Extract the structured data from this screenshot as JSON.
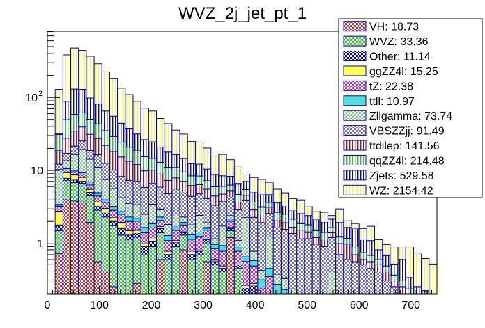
{
  "chart_data": {
    "type": "bar",
    "subtype": "stacked-histogram",
    "title": "WVZ_2j_jet_pt_1",
    "xlabel": "",
    "ylabel": "",
    "xlim": [
      0,
      750
    ],
    "ylim": [
      0.2,
      810
    ],
    "yscale": "log",
    "bin_width": 15,
    "x_ticks": [
      0,
      100,
      200,
      300,
      400,
      500,
      600,
      700
    ],
    "x_tick_labels": [
      "0",
      "100",
      "200",
      "300",
      "400",
      "500",
      "600",
      "700"
    ],
    "y_tick_labels": [
      {
        "value": 1,
        "label": "1"
      },
      {
        "value": 10,
        "label": "10"
      },
      {
        "value": 100,
        "label": "10",
        "exponent": "2"
      }
    ],
    "grid": false,
    "legend_position": "top-right",
    "series": [
      {
        "name": "VH",
        "legend": "VH: 18.73",
        "color": "#cc3333",
        "fill": "checker",
        "values": [
          0,
          0.72,
          4.0,
          3.8,
          3.7,
          1.9,
          0.55,
          0.4,
          0.25,
          0,
          0,
          0.28,
          0,
          0,
          0.6,
          0,
          0,
          0.8,
          0,
          0,
          0.55,
          0,
          0,
          1.2,
          0,
          0,
          0,
          0,
          0,
          0,
          0,
          0,
          0,
          0,
          0,
          0,
          0,
          0,
          0,
          0,
          0,
          0,
          0,
          0,
          0,
          0,
          0,
          0,
          0,
          0
        ]
      },
      {
        "name": "WVZ",
        "legend": "WVZ: 33.36",
        "color": "#33cc33",
        "fill": "checker",
        "values": [
          0,
          0.78,
          3.2,
          3.0,
          2.8,
          2.6,
          2.3,
          1.9,
          1.5,
          1.3,
          1.1,
          0.9,
          0.7,
          0.9,
          0.8,
          0.6,
          0.9,
          0.5,
          0.6,
          0.7,
          0.45,
          0.5,
          0.4,
          0.3,
          0.45,
          0.2,
          0.2,
          0,
          0.15,
          0,
          0,
          0,
          0,
          0,
          0,
          0,
          0,
          0,
          0,
          0,
          0,
          0,
          0,
          0,
          0,
          0,
          0,
          0,
          0,
          0
        ]
      },
      {
        "name": "Other",
        "legend": "Other: 11.14",
        "color": "#0000cc",
        "fill": "checker",
        "values": [
          0,
          0.25,
          0.6,
          0.55,
          0.5,
          0.4,
          0.35,
          0.3,
          0.25,
          0.3,
          0.2,
          0.18,
          0.2,
          0.15,
          0.2,
          0.1,
          0.12,
          0.1,
          0.1,
          0.08,
          0.12,
          0.05,
          0.05,
          0.1,
          0.05,
          0.04,
          0.06,
          0.04,
          0.05,
          0.04,
          0.05,
          0.03,
          0.03,
          0.03,
          0,
          0,
          0,
          0,
          0,
          0,
          0,
          0,
          0,
          0,
          0,
          0,
          0,
          0,
          0,
          0
        ]
      },
      {
        "name": "ggZZ4l",
        "legend": "ggZZ4l: 15.25",
        "color": "#ffff55",
        "fill": "solid",
        "values": [
          0,
          0.95,
          1.5,
          1.3,
          1.0,
          0.6,
          0.5,
          0.35,
          0.25,
          0.3,
          0.2,
          0.15,
          0.1,
          0.12,
          0.1,
          0.08,
          0.06,
          0.05,
          0.06,
          0.04,
          0.05,
          0.04,
          0.03,
          0.02,
          0.03,
          0.02,
          0.02,
          0,
          0,
          0,
          0,
          0,
          0,
          0,
          0,
          0,
          0,
          0,
          0,
          0,
          0,
          0,
          0,
          0,
          0,
          0,
          0,
          0,
          0,
          0
        ]
      },
      {
        "name": "tZ",
        "legend": "tZ: 22.38",
        "color": "#cc33cc",
        "fill": "checker",
        "values": [
          0,
          0.45,
          0.8,
          0.9,
          0.85,
          0.8,
          0.75,
          0.7,
          0.6,
          0.55,
          0.5,
          0.45,
          0.4,
          0.5,
          0.35,
          0.3,
          0.4,
          0.3,
          0.35,
          0.4,
          0.3,
          0.25,
          0.3,
          0.35,
          0.25,
          0.3,
          0.2,
          0.2,
          0.15,
          0.15,
          0.1,
          0.1,
          0.08,
          0.08,
          0,
          0,
          0,
          0,
          0,
          0,
          0,
          0,
          0,
          0,
          0,
          0,
          0,
          0,
          0,
          0
        ]
      },
      {
        "name": "ttll",
        "legend": "ttll: 10.97",
        "color": "#55dddd",
        "fill": "solid",
        "values": [
          0,
          0.2,
          0.5,
          0.45,
          0.45,
          0.4,
          0.4,
          0.35,
          0.3,
          0.3,
          0.3,
          0.25,
          0.25,
          0.2,
          0.25,
          0.2,
          0.2,
          0.15,
          0.2,
          0.15,
          0.15,
          0.12,
          0.15,
          0.12,
          0.1,
          0.1,
          0.1,
          0.08,
          0.1,
          0.08,
          0.08,
          0.06,
          0.06,
          0.05,
          0,
          0,
          0,
          0,
          0,
          0,
          0,
          0,
          0,
          0,
          0,
          0,
          0,
          0,
          0,
          0
        ]
      },
      {
        "name": "Zllgamma",
        "legend": "Zllgamma: 73.74",
        "color": "#88cc88",
        "fill": "checker",
        "values": [
          0,
          6.9,
          3.0,
          6.5,
          10.0,
          7.5,
          6.0,
          3.5,
          2.5,
          1.5,
          1.2,
          1.2,
          0.8,
          1.5,
          0.6,
          0.5,
          0.9,
          0.4,
          0.5,
          1.0,
          0.3,
          0.2,
          0.8,
          0.3,
          0.2,
          1.6,
          0.2,
          0.1,
          0.8,
          0.1,
          0.1,
          0.05,
          0,
          0,
          0,
          0,
          0.4,
          0,
          0,
          0,
          0,
          0,
          0,
          0,
          0,
          0,
          0,
          0,
          0,
          0
        ]
      },
      {
        "name": "VBSZZjj",
        "legend": "VBSZZjj: 91.49",
        "color": "#7777bb",
        "fill": "checker",
        "values": [
          0,
          1.9,
          3.5,
          5.0,
          6.0,
          4.5,
          5.5,
          5.0,
          4.5,
          4.0,
          3.8,
          3.6,
          3.4,
          3.2,
          3.0,
          3.0,
          2.8,
          2.7,
          2.6,
          2.4,
          2.2,
          2.1,
          2.0,
          1.9,
          1.8,
          1.6,
          1.5,
          1.5,
          1.3,
          1.3,
          1.2,
          1.1,
          1.0,
          1.0,
          0.95,
          0.9,
          0.8,
          0.7,
          0.6,
          0.55,
          0.5,
          0.45,
          0.4,
          0.3,
          0.25,
          0.2,
          0.15,
          0.12,
          0.1,
          0.08
        ]
      },
      {
        "name": "ttdilep",
        "legend": "ttdilep: 141.56",
        "color": "#dd0000",
        "fill": "vlines",
        "values": [
          0,
          6.4,
          10.5,
          13.0,
          14.0,
          12.5,
          11.0,
          9.5,
          8.0,
          7.0,
          6.0,
          5.0,
          4.0,
          3.5,
          3.0,
          2.5,
          2.5,
          2.0,
          1.8,
          1.6,
          1.4,
          1.2,
          1.0,
          0.9,
          0.8,
          0.7,
          0.6,
          0.5,
          0.5,
          0.4,
          0.4,
          0.3,
          0.3,
          0.25,
          0.25,
          0.2,
          0.2,
          0.3,
          0.35,
          0.15,
          0.1,
          0.1,
          0.1,
          0.1,
          0.05,
          0.05,
          0.05,
          0,
          0,
          0
        ]
      },
      {
        "name": "qqZZ4l",
        "legend": "qqZZ4l: 214.48",
        "color": "#00dd00",
        "fill": "vlines",
        "values": [
          0,
          12.5,
          22.0,
          24.0,
          22.0,
          19.0,
          16.0,
          13.0,
          11.0,
          9.0,
          7.5,
          6.5,
          5.5,
          4.5,
          4.0,
          3.5,
          3.0,
          2.5,
          2.2,
          2.0,
          1.7,
          1.5,
          1.3,
          1.1,
          1.0,
          0.9,
          0.8,
          0.7,
          0.6,
          0.55,
          0.5,
          0.45,
          0.4,
          0.35,
          0.3,
          0.28,
          0.25,
          0.22,
          0.2,
          0.18,
          0.15,
          0.12,
          0.1,
          0.08,
          0.06,
          0.05,
          0.04,
          0.03,
          0.02,
          0.02
        ]
      },
      {
        "name": "Zjets",
        "legend": "Zjets: 529.58",
        "color": "#0000dd",
        "fill": "vlines",
        "values": [
          0,
          0.5,
          39.0,
          72.0,
          68.0,
          48.0,
          38.0,
          30.0,
          26.0,
          20.0,
          17.0,
          13.0,
          11.0,
          10.0,
          8.0,
          7.0,
          5.5,
          5.0,
          4.0,
          3.8,
          3.2,
          2.8,
          2.4,
          2.0,
          1.8,
          1.6,
          1.3,
          1.5,
          1.0,
          1.0,
          0.8,
          0.7,
          0.7,
          0.6,
          0.6,
          0.55,
          0.5,
          0.7,
          0.5,
          0.7,
          0.35,
          0.4,
          0.2,
          0.2,
          0.15,
          0.3,
          0.1,
          0.1,
          0.1,
          0.1
        ]
      },
      {
        "name": "WZ",
        "legend": "WZ: 2154.42",
        "color": "#ffff00",
        "fill": "vlines",
        "values": [
          0,
          97.5,
          295.4,
          346.3,
          312.7,
          269.7,
          208.7,
          159.0,
          127.9,
          89.8,
          71.7,
          56.9,
          44.8,
          40.4,
          30.5,
          25.8,
          19.2,
          16.9,
          12.4,
          12.2,
          9.8,
          8.0,
          8.1,
          5.7,
          4.6,
          1.8,
          3.0,
          2.9,
          2.1,
          1.9,
          1.6,
          1.3,
          1.3,
          0.85,
          0.65,
          0.69,
          0.21,
          0.99,
          0.42,
          0.27,
          0.49,
          0.65,
          0.32,
          0.28,
          0.37,
          0.28,
          0.54,
          0.46,
          0.4,
          0.31
        ]
      }
    ],
    "totals": [
      0,
      128.5,
      381,
      482,
      448,
      370,
      290,
      221,
      183,
      134,
      110,
      90,
      71,
      66,
      51,
      44,
      35.6,
      31,
      24.3,
      22.8,
      19.1,
      16.4,
      15.0,
      11.9,
      10.8,
      8.8,
      7.7,
      8.2,
      6.1,
      5.7,
      4.7,
      3.9,
      3.7,
      3.0,
      2.75,
      2.57,
      2.36,
      2.21,
      1.57,
      1.42,
      1.64,
      1.19,
      1.12,
      1.04,
      0.94,
      0.84,
      0.88,
      0.71,
      0.62,
      0.51
    ]
  }
}
